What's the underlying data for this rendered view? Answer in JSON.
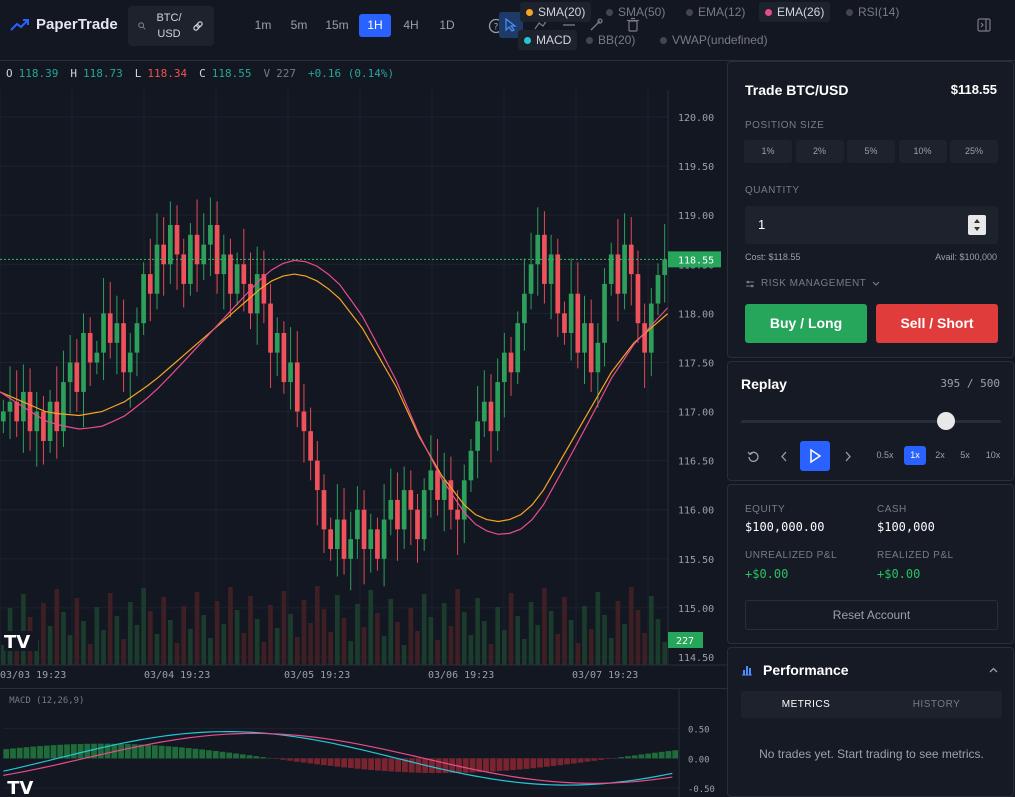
{
  "app": {
    "name": "PaperTrade",
    "symbol": "BTC/\nUSD",
    "symbol_line1": "BTC/",
    "symbol_line2": "USD"
  },
  "timeframes": [
    "1m",
    "5m",
    "15m",
    "1H",
    "4H",
    "1D"
  ],
  "active_timeframe": "1H",
  "indicators": [
    {
      "label": "SMA(20)",
      "color": "#f5a623",
      "active": true
    },
    {
      "label": "SMA(50)",
      "color": "#434651",
      "active": false
    },
    {
      "label": "EMA(12)",
      "color": "#434651",
      "active": false
    },
    {
      "label": "EMA(26)",
      "color": "#e84c8a",
      "active": true
    },
    {
      "label": "RSI(14)",
      "color": "#434651",
      "active": false
    },
    {
      "label": "MACD",
      "color": "#26c6da",
      "active": true
    },
    {
      "label": "BB(20)",
      "color": "#434651",
      "active": false
    },
    {
      "label": "VWAP(undefined)",
      "color": "#434651",
      "active": false
    }
  ],
  "ohlc": {
    "o_label": "O",
    "o": "118.39",
    "h_label": "H",
    "h": "118.73",
    "l_label": "L",
    "l": "118.34",
    "c_label": "C",
    "c": "118.55",
    "v_label": "V",
    "v": "227",
    "change": "+0.16 (0.14%)"
  },
  "price_axis": [
    "120.00",
    "119.50",
    "119.00",
    "118.50",
    "118.00",
    "117.50",
    "117.00",
    "116.50",
    "116.00",
    "115.50",
    "115.00",
    "114.50"
  ],
  "current_price_tag": "118.55",
  "volume_tag": "227",
  "time_axis": [
    "03/03 19:23",
    "03/04 19:23",
    "03/05 19:23",
    "03/06 19:23",
    "03/07 19:23"
  ],
  "macd": {
    "label": "MACD (12,26,9)",
    "axis": [
      "0.50",
      "0.00",
      "-0.50"
    ]
  },
  "trade": {
    "title": "Trade BTC/USD",
    "price": "$118.55",
    "position_size_label": "POSITION SIZE",
    "position_sizes": [
      "1%",
      "2%",
      "5%",
      "10%",
      "25%"
    ],
    "quantity_label": "QUANTITY",
    "quantity_value": "1",
    "cost": "Cost: $118.55",
    "avail": "Avail: $100,000",
    "risk_label": "RISK MANAGEMENT",
    "buy_label": "Buy / Long",
    "sell_label": "Sell / Short"
  },
  "replay": {
    "title": "Replay",
    "progress_text": "395 / 500",
    "progress": 0.79,
    "speeds": [
      "0.5x",
      "1x",
      "2x",
      "5x",
      "10x"
    ],
    "active_speed": "1x"
  },
  "account": {
    "equity_label": "EQUITY",
    "equity": "$100,000.00",
    "cash_label": "CASH",
    "cash": "$100,000",
    "unrealized_label": "UNREALIZED P&L",
    "unrealized": "+$0.00",
    "realized_label": "REALIZED P&L",
    "realized": "+$0.00",
    "reset_label": "Reset Account"
  },
  "performance": {
    "title": "Performance",
    "tabs": [
      "METRICS",
      "HISTORY"
    ],
    "active_tab": "METRICS",
    "empty_text": "No trades yet. Start trading to see metrics."
  },
  "chart_data": {
    "type": "candlestick",
    "y_range": [
      114.5,
      120.0
    ],
    "last_close": 118.55,
    "closes": [
      117.0,
      117.1,
      116.9,
      117.2,
      116.8,
      117.0,
      116.7,
      117.1,
      116.8,
      117.3,
      117.5,
      117.2,
      117.8,
      117.5,
      117.6,
      118.0,
      117.7,
      117.9,
      117.4,
      117.6,
      117.9,
      118.4,
      118.2,
      118.7,
      118.5,
      118.9,
      118.6,
      118.3,
      118.8,
      118.5,
      118.7,
      118.9,
      118.4,
      118.6,
      118.2,
      118.5,
      118.3,
      118.0,
      118.4,
      118.1,
      117.6,
      117.8,
      117.3,
      117.5,
      117.0,
      116.8,
      116.5,
      116.2,
      115.8,
      115.6,
      115.9,
      115.5,
      115.7,
      116.0,
      115.6,
      115.8,
      115.5,
      115.9,
      116.1,
      115.8,
      116.2,
      116.0,
      115.7,
      116.2,
      116.4,
      116.1,
      116.3,
      116.0,
      115.9,
      116.3,
      116.6,
      116.9,
      117.1,
      116.8,
      117.3,
      117.6,
      117.4,
      117.9,
      118.2,
      118.5,
      118.8,
      118.3,
      118.6,
      118.0,
      117.8,
      118.2,
      117.6,
      117.9,
      117.4,
      117.7,
      118.3,
      118.6,
      118.2,
      118.7,
      118.4,
      117.9,
      117.6,
      118.1,
      118.39,
      118.55
    ],
    "sma20": [
      117.2,
      117.15,
      117.1,
      117.05,
      117.0,
      116.98,
      116.97,
      116.96,
      116.98,
      117.0,
      117.05,
      117.1,
      117.18,
      117.26,
      117.35,
      117.45,
      117.55,
      117.65,
      117.75,
      117.85,
      117.95,
      118.05,
      118.15,
      118.25,
      118.33,
      118.38,
      118.4,
      118.38,
      118.33,
      118.25,
      118.15,
      118.0,
      117.85,
      117.65,
      117.45,
      117.25,
      117.0,
      116.75,
      116.55,
      116.35,
      116.2,
      116.05,
      115.95,
      115.9,
      115.88,
      115.9,
      115.95,
      116.05,
      116.2,
      116.4,
      116.6,
      116.8,
      117.0,
      117.2,
      117.4,
      117.55,
      117.7,
      117.8,
      117.9,
      118.0
    ]
  }
}
